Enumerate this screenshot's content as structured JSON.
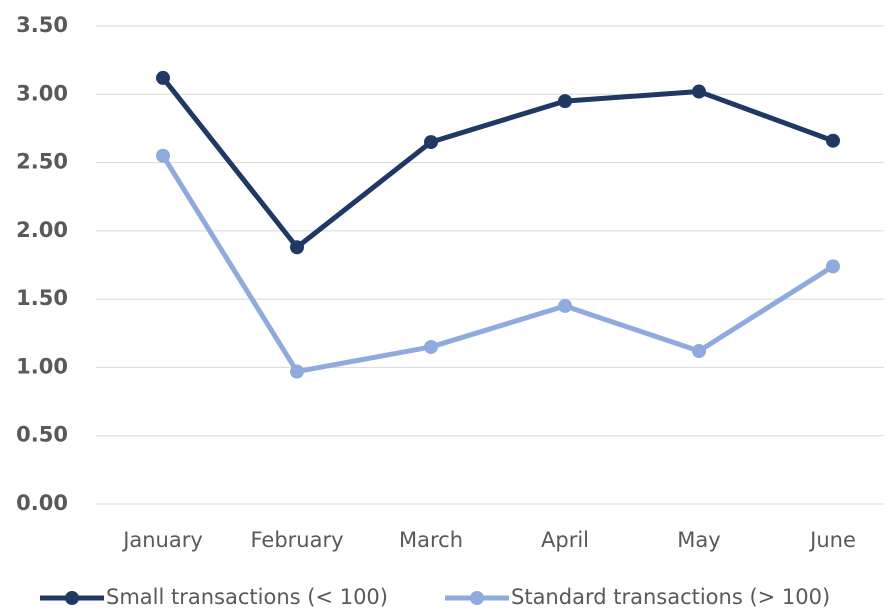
{
  "chart_data": {
    "type": "line",
    "categories": [
      "January",
      "February",
      "March",
      "April",
      "May",
      "June"
    ],
    "series": [
      {
        "name": "Small transactions (< 100)",
        "color": "#1f3864",
        "values": [
          3.12,
          1.88,
          2.65,
          2.95,
          3.02,
          2.66
        ]
      },
      {
        "name": "Standard transactions (> 100)",
        "color": "#8faadc",
        "values": [
          2.55,
          0.97,
          1.15,
          1.45,
          1.12,
          1.74
        ]
      }
    ],
    "ylim": [
      0,
      3.5
    ],
    "yticks": [
      {
        "value": 0,
        "label": "0.00"
      },
      {
        "value": 0.5,
        "label": "0.50"
      },
      {
        "value": 1,
        "label": "1.00"
      },
      {
        "value": 1.5,
        "label": "1.50"
      },
      {
        "value": 2,
        "label": "2.00"
      },
      {
        "value": 2.5,
        "label": "2.50"
      },
      {
        "value": 3,
        "label": "3.00"
      },
      {
        "value": 3.5,
        "label": "3.50"
      }
    ],
    "grid": true,
    "legend": "bottom"
  }
}
